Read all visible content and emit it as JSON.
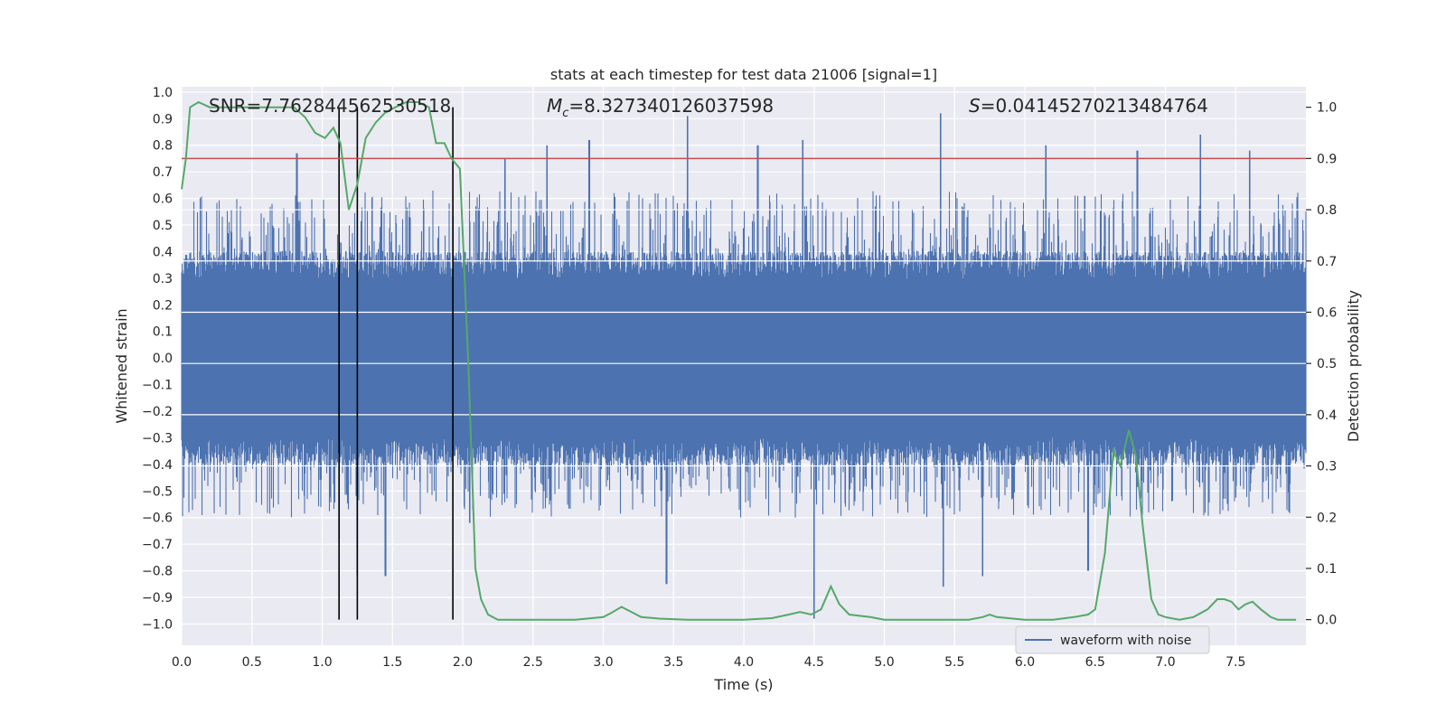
{
  "chart_data": {
    "type": "line",
    "title": "stats at each timestep for test data 21006 [signal=1]",
    "xlabel": "Time (s)",
    "ylabel_left": "Whitened strain",
    "ylabel_right": "Detection probability",
    "xlim": [
      0.0,
      8.0
    ],
    "ylim_left": [
      -1.08,
      1.02
    ],
    "ylim_right": [
      -0.05,
      1.04
    ],
    "x_ticks": [
      "0.0",
      "0.5",
      "1.0",
      "1.5",
      "2.0",
      "2.5",
      "3.0",
      "3.5",
      "4.0",
      "4.5",
      "5.0",
      "5.5",
      "6.0",
      "6.5",
      "7.0",
      "7.5"
    ],
    "y_ticks_left": [
      "1.0",
      "0.9",
      "0.8",
      "0.7",
      "0.6",
      "0.5",
      "0.4",
      "0.3",
      "0.2",
      "0.1",
      "0.0",
      "-0.1",
      "-0.2",
      "-0.3",
      "-0.4",
      "-0.5",
      "-0.6",
      "-0.7",
      "-0.8",
      "-0.9",
      "-1.0"
    ],
    "y_ticks_right": [
      "1.0",
      "0.9",
      "0.8",
      "0.7",
      "0.6",
      "0.5",
      "0.4",
      "0.3",
      "0.2",
      "0.1",
      "0.0"
    ],
    "grid": true,
    "annotations": {
      "snr": "SNR=7.762844562530518",
      "mc_symbol": "M",
      "mc_sub": "c",
      "mc_value": "=8.327340126037598",
      "s_symbol": "S",
      "s_value": "=0.041452702134847​64"
    },
    "threshold": {
      "value": 0.9,
      "color": "#c44e52"
    },
    "vlines_s": [
      1.12,
      1.25,
      1.93
    ],
    "waveform": {
      "name": "waveform with noise",
      "color": "#4c72b0",
      "envelope_typical": 0.35,
      "peaks": [
        {
          "t": 0.82,
          "v": 0.77
        },
        {
          "t": 1.12,
          "v": -0.68
        },
        {
          "t": 1.25,
          "v": -0.82
        },
        {
          "t": 1.45,
          "v": -0.82
        },
        {
          "t": 2.05,
          "v": -0.62
        },
        {
          "t": 2.3,
          "v": 0.75
        },
        {
          "t": 2.6,
          "v": 0.8
        },
        {
          "t": 2.9,
          "v": 0.82
        },
        {
          "t": 3.45,
          "v": -0.85
        },
        {
          "t": 3.6,
          "v": 0.91
        },
        {
          "t": 4.1,
          "v": 0.8
        },
        {
          "t": 4.42,
          "v": 0.82
        },
        {
          "t": 4.5,
          "v": -0.98
        },
        {
          "t": 5.4,
          "v": 0.92
        },
        {
          "t": 5.42,
          "v": -0.86
        },
        {
          "t": 5.7,
          "v": -0.82
        },
        {
          "t": 6.15,
          "v": 0.8
        },
        {
          "t": 6.45,
          "v": -0.8
        },
        {
          "t": 6.8,
          "v": 0.78
        },
        {
          "t": 7.25,
          "v": 0.84
        },
        {
          "t": 7.6,
          "v": 0.78
        }
      ]
    },
    "detection_probability": {
      "color": "#55a868",
      "x": [
        0.0,
        0.03,
        0.06,
        0.12,
        0.2,
        0.4,
        0.6,
        0.8,
        0.88,
        0.95,
        1.02,
        1.08,
        1.13,
        1.19,
        1.25,
        1.31,
        1.38,
        1.45,
        1.52,
        1.6,
        1.68,
        1.76,
        1.81,
        1.87,
        1.92,
        1.98,
        2.04,
        2.09,
        2.13,
        2.18,
        2.25,
        2.4,
        2.6,
        2.8,
        3.0,
        3.05,
        3.13,
        3.2,
        3.27,
        3.4,
        3.6,
        3.8,
        4.0,
        4.2,
        4.32,
        4.4,
        4.48,
        4.55,
        4.62,
        4.68,
        4.75,
        4.9,
        5.0,
        5.2,
        5.4,
        5.6,
        5.7,
        5.75,
        5.8,
        6.0,
        6.2,
        6.35,
        6.45,
        6.5,
        6.57,
        6.63,
        6.68,
        6.74,
        6.79,
        6.84,
        6.9,
        6.95,
        7.0,
        7.1,
        7.2,
        7.3,
        7.37,
        7.42,
        7.47,
        7.52,
        7.57,
        7.62,
        7.68,
        7.75,
        7.8,
        7.93
      ],
      "y": [
        0.84,
        0.9,
        1.0,
        1.01,
        1.0,
        1.0,
        1.0,
        1.0,
        0.98,
        0.95,
        0.94,
        0.96,
        0.93,
        0.8,
        0.85,
        0.94,
        0.97,
        0.99,
        1.0,
        1.01,
        1.01,
        1.0,
        0.93,
        0.93,
        0.9,
        0.88,
        0.5,
        0.1,
        0.04,
        0.01,
        0.0,
        0.0,
        0.0,
        0.0,
        0.005,
        0.012,
        0.025,
        0.015,
        0.005,
        0.002,
        0.0,
        0.0,
        0.0,
        0.003,
        0.01,
        0.015,
        0.01,
        0.02,
        0.065,
        0.03,
        0.01,
        0.005,
        0.0,
        0.0,
        0.0,
        0.0,
        0.005,
        0.01,
        0.005,
        0.0,
        0.0,
        0.005,
        0.01,
        0.02,
        0.13,
        0.33,
        0.3,
        0.37,
        0.32,
        0.18,
        0.04,
        0.01,
        0.005,
        0.0,
        0.005,
        0.02,
        0.04,
        0.04,
        0.035,
        0.02,
        0.03,
        0.035,
        0.02,
        0.005,
        0.0,
        0.0
      ]
    },
    "legend": {
      "label": "waveform with noise",
      "placement": "lower-right"
    }
  }
}
